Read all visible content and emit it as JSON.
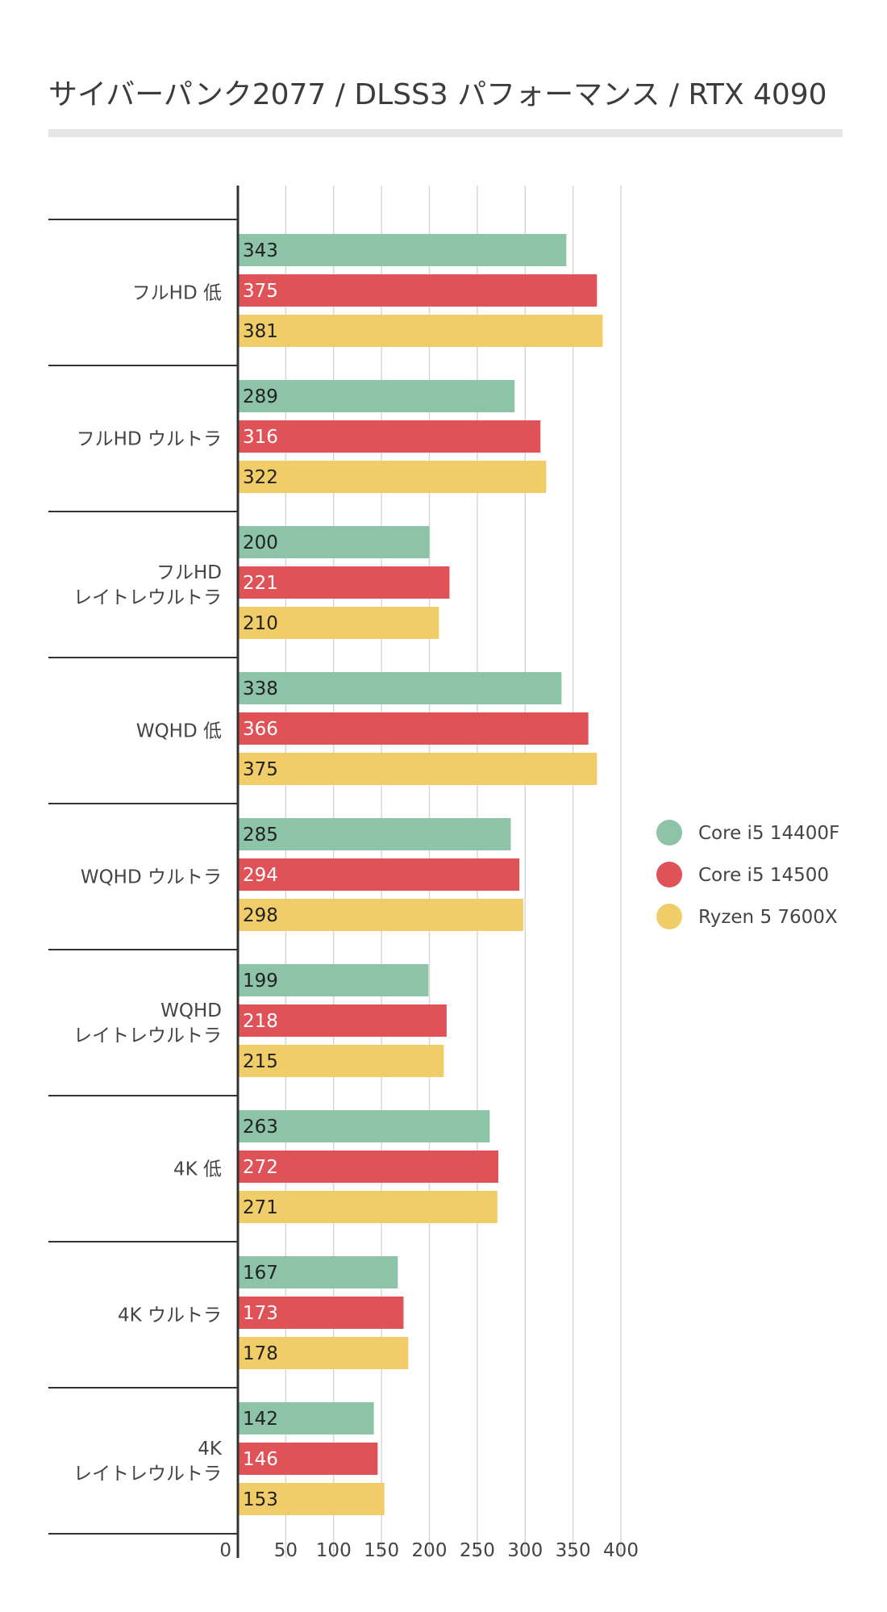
{
  "chart_data": {
    "type": "bar",
    "orientation": "horizontal",
    "title": "サイバーパンク2077 / DLSS3 パフォーマンス / RTX 4090",
    "categories": [
      "フルHD 低",
      "フルHD ウルトラ",
      "フルHD\nレイトレウルトラ",
      "WQHD 低",
      "WQHD ウルトラ",
      "WQHD\nレイトレウルトラ",
      "4K 低",
      "4K ウルトラ",
      "4K\nレイトレウルトラ"
    ],
    "series": [
      {
        "name": "Core i5 14400F",
        "color": "#8dc3a7",
        "label_color": "#222222",
        "values": [
          343,
          289,
          200,
          338,
          285,
          199,
          263,
          167,
          142
        ]
      },
      {
        "name": "Core i5 14500",
        "color": "#df5257",
        "label_color": "#ffffff",
        "values": [
          375,
          316,
          221,
          366,
          294,
          218,
          272,
          173,
          146
        ]
      },
      {
        "name": "Ryzen 5 7600X",
        "color": "#f0cd68",
        "label_color": "#222222",
        "values": [
          381,
          322,
          210,
          375,
          298,
          215,
          271,
          178,
          153
        ]
      }
    ],
    "x_ticks": [
      0,
      50,
      100,
      150,
      200,
      250,
      300,
      350,
      400
    ],
    "xlim": [
      0,
      400
    ],
    "grid": true,
    "legend_position": "right"
  }
}
